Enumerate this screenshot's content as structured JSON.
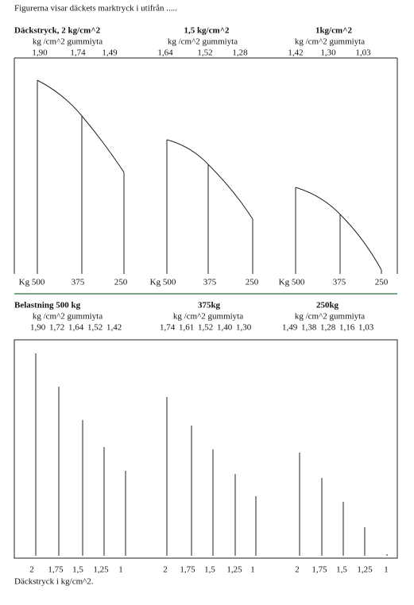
{
  "header": {
    "title": "Figurerna visar däckets marktryck i utifrån ....."
  },
  "top": {
    "groups": [
      {
        "title": "Däckstryck, 2 kg/cm^2",
        "unit": "kg /cm^2 gummiyta",
        "values": [
          "1,90",
          "1,74",
          "1,49"
        ],
        "axis": [
          "Kg 500",
          "375",
          "250"
        ]
      },
      {
        "title": "1,5 kg/cm^2",
        "unit": "kg /cm^2 gummiyta",
        "values": [
          "1,64",
          "1,52",
          "1,28"
        ],
        "axis": [
          "Kg 500",
          "375",
          "250"
        ]
      },
      {
        "title": "1kg/cm^2",
        "unit": "kg /cm^2 gummiyta",
        "values": [
          "1,42",
          "1,30",
          "1,03"
        ],
        "axis": [
          "Kg 500",
          "375",
          "250"
        ]
      }
    ]
  },
  "bottom": {
    "groups": [
      {
        "title": "Belastning   500 kg",
        "unit": "kg /cm^2 gummiyta",
        "values": [
          "1,90",
          "1,72",
          "1,64",
          "1,52",
          "1,42"
        ],
        "axis": [
          "2",
          "1,75",
          "1,5",
          "1,25",
          "1"
        ]
      },
      {
        "title": "375kg",
        "unit": "kg /cm^2 gummiyta",
        "values": [
          "1,74",
          "1,61",
          "1,52",
          "1,40",
          "1,30"
        ],
        "axis": [
          "2",
          "1,75",
          "1,5",
          "1,25",
          "1"
        ]
      },
      {
        "title": "250kg",
        "unit": "kg /cm^2 gummiyta",
        "values": [
          "1,49",
          "1,38",
          "1,28",
          "1,16",
          "1,03"
        ],
        "axis": [
          "2",
          "1,75",
          "1,5",
          "1,25",
          "1"
        ]
      }
    ],
    "footer": "Däckstryck i kg/cm^2."
  }
}
